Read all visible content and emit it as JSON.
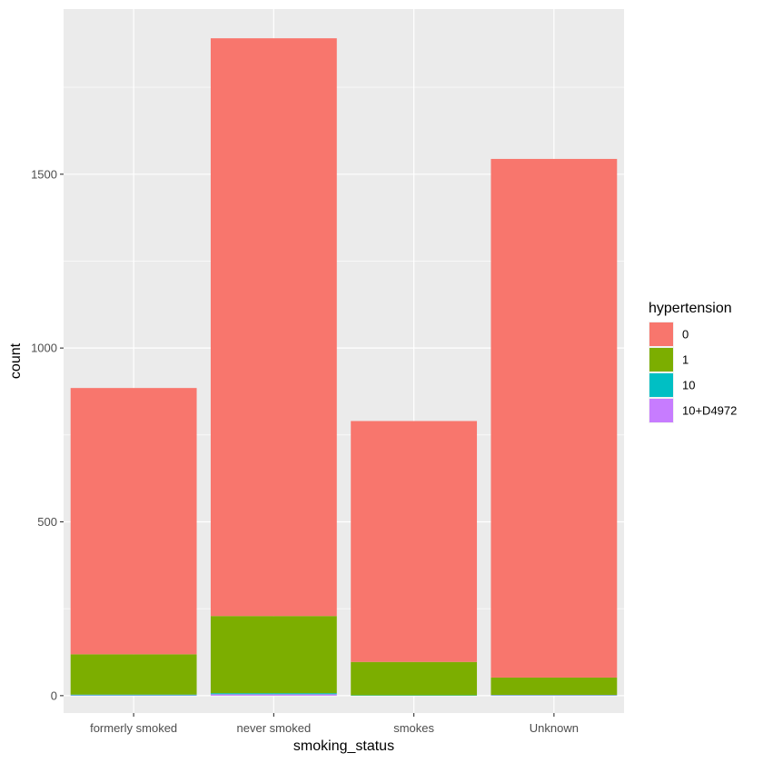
{
  "chart_data": {
    "type": "bar",
    "stacked": true,
    "categories": [
      "formerly smoked",
      "never smoked",
      "smokes",
      "Unknown"
    ],
    "series": [
      {
        "name": "0",
        "color": "#F8766D",
        "values": [
          766,
          1662,
          693,
          1492
        ]
      },
      {
        "name": "1",
        "color": "#7CAE00",
        "values": [
          116,
          222,
          96,
          50
        ]
      },
      {
        "name": "10",
        "color": "#00BFC4",
        "values": [
          2,
          3,
          1,
          1
        ]
      },
      {
        "name": "10+D4972",
        "color": "#C77CFF",
        "values": [
          1,
          4,
          0,
          1
        ]
      }
    ],
    "xlabel": "smoking_status",
    "ylabel": "count",
    "yticks": [
      0,
      500,
      1000,
      1500
    ],
    "ylim": [
      -50,
      1975
    ],
    "grid": true,
    "legend": {
      "title": "hypertension",
      "position": "right"
    }
  }
}
